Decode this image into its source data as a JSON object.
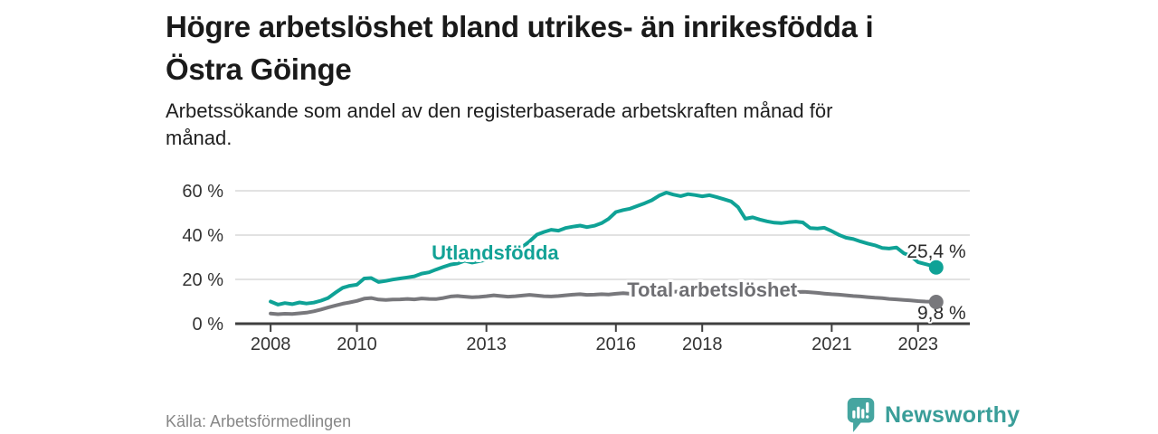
{
  "header": {
    "title_lines": [
      "Högre arbetslöshet bland utrikes- än inrikesfödda i",
      "Östra Göinge"
    ],
    "subtitle_lines": [
      "Arbetssökande som andel av den registerbaserade arbetskraften månad för",
      "månad."
    ]
  },
  "footer": {
    "source": "Källa: Arbetsförmedlingen",
    "brand": "Newsworthy",
    "logo_icon": "bar-chart-speech-bubble-icon"
  },
  "colors": {
    "teal_line": "#0FA296",
    "gray_line": "#78787C",
    "teal_label": "#12A296",
    "gray_label": "#6F6F73",
    "value_text": "#2B2B2B",
    "tick_text": "#333333",
    "axis": "#3F3F3F",
    "grid": "#D9D9D9",
    "logo_badge": "#45A5A0",
    "logo_text": "#3A9E99",
    "halo": "#FFFFFF"
  },
  "chart_data": {
    "type": "line",
    "title": "Högre arbetslöshet bland utrikes- än inrikesfödda i Östra Göinge",
    "subtitle": "Arbetssökande som andel av den registerbaserade arbetskraften månad för månad.",
    "xlabel": "",
    "ylabel": "",
    "grid": "horizontal",
    "legend_position": "inline-labels",
    "xlim": [
      2007.18,
      2024.2
    ],
    "ylim": [
      0,
      60
    ],
    "x_ticks": [
      2008,
      2010,
      2013,
      2016,
      2018,
      2021,
      2023
    ],
    "x_tick_labels": [
      "2008",
      "2010",
      "2013",
      "2016",
      "2018",
      "2021",
      "2023"
    ],
    "y_ticks": [
      0,
      20,
      40,
      60
    ],
    "y_tick_labels": [
      "0 %",
      "20 %",
      "40 %",
      "60 %"
    ],
    "series": [
      {
        "id": "utlandsfodda",
        "name": "Utlandsfödda",
        "color": "#0FA296",
        "end_value": 25.4,
        "end_value_label": "25,4 %",
        "data": [
          [
            2008.0,
            10.0
          ],
          [
            2008.17,
            8.6
          ],
          [
            2008.33,
            9.3
          ],
          [
            2008.5,
            8.8
          ],
          [
            2008.67,
            9.6
          ],
          [
            2008.83,
            9.1
          ],
          [
            2009.0,
            9.5
          ],
          [
            2009.17,
            10.4
          ],
          [
            2009.33,
            11.6
          ],
          [
            2009.5,
            14.0
          ],
          [
            2009.67,
            16.2
          ],
          [
            2009.83,
            17.1
          ],
          [
            2010.0,
            17.6
          ],
          [
            2010.17,
            20.4
          ],
          [
            2010.33,
            20.6
          ],
          [
            2010.5,
            18.8
          ],
          [
            2010.67,
            19.3
          ],
          [
            2010.83,
            19.9
          ],
          [
            2011.0,
            20.4
          ],
          [
            2011.17,
            20.9
          ],
          [
            2011.33,
            21.4
          ],
          [
            2011.5,
            22.6
          ],
          [
            2011.67,
            23.2
          ],
          [
            2011.83,
            24.4
          ],
          [
            2012.0,
            25.6
          ],
          [
            2012.17,
            26.7
          ],
          [
            2012.33,
            27.2
          ],
          [
            2012.5,
            28.4
          ],
          [
            2012.67,
            27.6
          ],
          [
            2012.83,
            28.2
          ],
          [
            2013.0,
            28.8
          ],
          [
            2013.17,
            29.6
          ],
          [
            2013.33,
            30.5
          ],
          [
            2013.5,
            31.4
          ],
          [
            2013.67,
            32.8
          ],
          [
            2013.83,
            34.6
          ],
          [
            2014.0,
            37.2
          ],
          [
            2014.17,
            40.2
          ],
          [
            2014.33,
            41.4
          ],
          [
            2014.5,
            42.4
          ],
          [
            2014.67,
            42.0
          ],
          [
            2014.83,
            43.2
          ],
          [
            2015.0,
            43.8
          ],
          [
            2015.17,
            44.3
          ],
          [
            2015.33,
            43.6
          ],
          [
            2015.5,
            44.2
          ],
          [
            2015.67,
            45.4
          ],
          [
            2015.83,
            47.3
          ],
          [
            2016.0,
            50.4
          ],
          [
            2016.17,
            51.3
          ],
          [
            2016.33,
            51.9
          ],
          [
            2016.5,
            53.2
          ],
          [
            2016.67,
            54.4
          ],
          [
            2016.83,
            55.7
          ],
          [
            2017.0,
            57.8
          ],
          [
            2017.17,
            59.2
          ],
          [
            2017.33,
            58.3
          ],
          [
            2017.5,
            57.6
          ],
          [
            2017.67,
            58.5
          ],
          [
            2017.83,
            58.1
          ],
          [
            2018.0,
            57.5
          ],
          [
            2018.17,
            58.0
          ],
          [
            2018.33,
            57.2
          ],
          [
            2018.5,
            56.2
          ],
          [
            2018.67,
            55.2
          ],
          [
            2018.83,
            52.6
          ],
          [
            2019.0,
            47.4
          ],
          [
            2019.17,
            48.0
          ],
          [
            2019.33,
            47.0
          ],
          [
            2019.5,
            46.2
          ],
          [
            2019.67,
            45.6
          ],
          [
            2019.83,
            45.4
          ],
          [
            2020.0,
            45.8
          ],
          [
            2020.17,
            46.1
          ],
          [
            2020.33,
            45.7
          ],
          [
            2020.5,
            43.2
          ],
          [
            2020.67,
            43.0
          ],
          [
            2020.83,
            43.3
          ],
          [
            2021.0,
            41.8
          ],
          [
            2021.17,
            40.1
          ],
          [
            2021.33,
            38.8
          ],
          [
            2021.5,
            38.2
          ],
          [
            2021.67,
            37.1
          ],
          [
            2021.83,
            36.2
          ],
          [
            2022.0,
            35.4
          ],
          [
            2022.17,
            34.2
          ],
          [
            2022.33,
            33.9
          ],
          [
            2022.5,
            34.4
          ],
          [
            2022.67,
            31.8
          ],
          [
            2022.83,
            30.6
          ],
          [
            2023.0,
            27.8
          ],
          [
            2023.17,
            26.9
          ],
          [
            2023.33,
            26.1
          ],
          [
            2023.42,
            25.4
          ]
        ]
      },
      {
        "id": "total",
        "name": "Total arbetslöshet",
        "color": "#78787C",
        "end_value": 9.8,
        "end_value_label": "9,8 %",
        "data": [
          [
            2008.0,
            4.6
          ],
          [
            2008.17,
            4.3
          ],
          [
            2008.33,
            4.5
          ],
          [
            2008.5,
            4.4
          ],
          [
            2008.67,
            4.7
          ],
          [
            2008.83,
            5.0
          ],
          [
            2009.0,
            5.6
          ],
          [
            2009.17,
            6.4
          ],
          [
            2009.33,
            7.3
          ],
          [
            2009.5,
            8.2
          ],
          [
            2009.67,
            9.0
          ],
          [
            2009.83,
            9.6
          ],
          [
            2010.0,
            10.3
          ],
          [
            2010.17,
            11.3
          ],
          [
            2010.33,
            11.6
          ],
          [
            2010.5,
            10.9
          ],
          [
            2010.67,
            10.7
          ],
          [
            2010.83,
            10.9
          ],
          [
            2011.0,
            11.0
          ],
          [
            2011.17,
            11.2
          ],
          [
            2011.33,
            11.0
          ],
          [
            2011.5,
            11.4
          ],
          [
            2011.67,
            11.2
          ],
          [
            2011.83,
            11.1
          ],
          [
            2012.0,
            11.6
          ],
          [
            2012.17,
            12.3
          ],
          [
            2012.33,
            12.5
          ],
          [
            2012.5,
            12.2
          ],
          [
            2012.67,
            11.9
          ],
          [
            2012.83,
            12.1
          ],
          [
            2013.0,
            12.4
          ],
          [
            2013.17,
            12.8
          ],
          [
            2013.33,
            12.5
          ],
          [
            2013.5,
            12.2
          ],
          [
            2013.67,
            12.4
          ],
          [
            2013.83,
            12.7
          ],
          [
            2014.0,
            13.0
          ],
          [
            2014.17,
            12.7
          ],
          [
            2014.33,
            12.4
          ],
          [
            2014.5,
            12.3
          ],
          [
            2014.67,
            12.5
          ],
          [
            2014.83,
            12.8
          ],
          [
            2015.0,
            13.1
          ],
          [
            2015.17,
            13.3
          ],
          [
            2015.33,
            13.0
          ],
          [
            2015.5,
            13.1
          ],
          [
            2015.67,
            13.3
          ],
          [
            2015.83,
            13.2
          ],
          [
            2016.0,
            13.5
          ],
          [
            2016.17,
            13.8
          ],
          [
            2016.33,
            13.5
          ],
          [
            2016.5,
            13.4
          ],
          [
            2016.67,
            13.7
          ],
          [
            2016.83,
            14.0
          ],
          [
            2017.0,
            14.3
          ],
          [
            2017.17,
            14.6
          ],
          [
            2017.33,
            14.4
          ],
          [
            2017.5,
            14.6
          ],
          [
            2017.67,
            14.4
          ],
          [
            2017.83,
            14.3
          ],
          [
            2018.0,
            14.4
          ],
          [
            2018.17,
            14.5
          ],
          [
            2018.33,
            14.2
          ],
          [
            2018.5,
            14.1
          ],
          [
            2018.67,
            13.9
          ],
          [
            2018.83,
            13.8
          ],
          [
            2019.0,
            13.9
          ],
          [
            2019.17,
            13.7
          ],
          [
            2019.33,
            13.8
          ],
          [
            2019.5,
            13.9
          ],
          [
            2019.67,
            13.8
          ],
          [
            2019.83,
            14.0
          ],
          [
            2020.0,
            14.2
          ],
          [
            2020.17,
            14.3
          ],
          [
            2020.33,
            14.4
          ],
          [
            2020.5,
            14.2
          ],
          [
            2020.67,
            13.9
          ],
          [
            2020.83,
            13.6
          ],
          [
            2021.0,
            13.3
          ],
          [
            2021.17,
            13.1
          ],
          [
            2021.33,
            12.8
          ],
          [
            2021.5,
            12.5
          ],
          [
            2021.67,
            12.3
          ],
          [
            2021.83,
            12.0
          ],
          [
            2022.0,
            11.7
          ],
          [
            2022.17,
            11.5
          ],
          [
            2022.33,
            11.2
          ],
          [
            2022.5,
            11.0
          ],
          [
            2022.67,
            10.7
          ],
          [
            2022.83,
            10.5
          ],
          [
            2023.0,
            10.2
          ],
          [
            2023.17,
            10.0
          ],
          [
            2023.33,
            9.9
          ],
          [
            2023.42,
            9.8
          ]
        ]
      }
    ],
    "annotations": [
      {
        "text": "Utlandsfödda",
        "x": 2011.73,
        "y": 29.0,
        "anchor": "start",
        "bold": true,
        "size": 22,
        "color": "#12A296"
      },
      {
        "text": "Total arbetslöshet",
        "x": 2016.26,
        "y": 12.2,
        "anchor": "start",
        "bold": true,
        "size": 22,
        "color": "#6F6F73"
      },
      {
        "text": "25,4 %",
        "x": 2024.11,
        "y": 29.8,
        "anchor": "end",
        "bold": false,
        "size": 21,
        "color": "#2B2B2B"
      },
      {
        "text": "9,8 %",
        "x": 2024.11,
        "y": 2.0,
        "anchor": "end",
        "bold": false,
        "size": 21,
        "color": "#2B2B2B"
      }
    ]
  }
}
